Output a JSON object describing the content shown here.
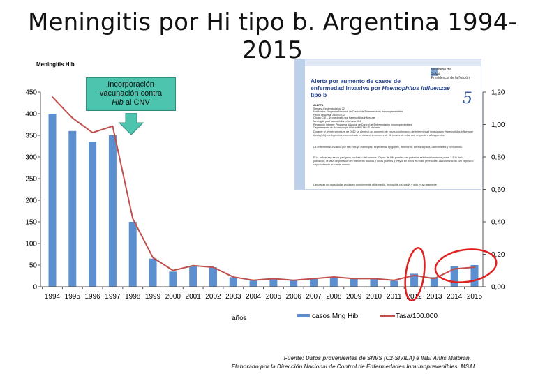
{
  "title": "Meningitis por Hi tipo b. Argentina 1994-2015",
  "chart_data": {
    "type": "bar",
    "categories": [
      "1994",
      "1995",
      "1996",
      "1997",
      "1998",
      "1999",
      "2000",
      "2001",
      "2002",
      "2003",
      "2004",
      "2005",
      "2006",
      "2007",
      "2008",
      "2009",
      "2010",
      "2011",
      "2012",
      "2013",
      "2014",
      "2015"
    ],
    "series": [
      {
        "name": "casos Mng Hib",
        "type": "bar",
        "axis": "left",
        "values": [
          400,
          360,
          335,
          350,
          150,
          65,
          35,
          47,
          45,
          22,
          15,
          18,
          15,
          20,
          22,
          20,
          20,
          14,
          30,
          22,
          47,
          50
        ],
        "color": "#5b8fd0"
      },
      {
        "name": "Tasa/100.000",
        "type": "line",
        "axis": "right",
        "values": [
          1.17,
          1.04,
          0.95,
          0.99,
          0.42,
          0.18,
          0.1,
          0.13,
          0.12,
          0.06,
          0.04,
          0.05,
          0.04,
          0.05,
          0.06,
          0.05,
          0.05,
          0.04,
          0.07,
          0.05,
          0.11,
          0.12
        ],
        "color": "#c0504d"
      }
    ],
    "ylabel": "Meningitis Hib",
    "xlabel": "años",
    "ylim": [
      0,
      450
    ],
    "y_ticks": [
      "450",
      "400",
      "350",
      "300",
      "250",
      "200",
      "150",
      "100",
      "50",
      "0"
    ],
    "y2lim": [
      0,
      1.2
    ],
    "y2_ticks": [
      "1,20",
      "1,00",
      "0,80",
      "0,60",
      "0,40",
      "0,20",
      "0,00"
    ],
    "grid": false,
    "legend": "bottom",
    "highlighted_categories": [
      "2012",
      "2014",
      "2015"
    ],
    "highlight_color": "#e02020"
  },
  "annotation": {
    "line1": "Incorporación",
    "line2": "vacunación contra",
    "line3_em": "Hib",
    "line3_rest": " al CNV",
    "color": "#4dc4ae"
  },
  "inset": {
    "title_line1": "Alerta por aumento de casos de",
    "title_line2": "enfermedad invasiva por ",
    "title_em": "Haemophilus influenzae",
    "title_line3": "tipo b",
    "number": "5",
    "logo_line1": "Ministerio de",
    "logo_line2": "Salud",
    "logo_line3": "Presidencia de la Nación",
    "meta": [
      "ALERTA",
      "Semana Epidemiológica:        22",
      "Notificador:          Programa Nacional de Control de Enfermedades Inmunoprevenibles",
      "Fecha de Alerta:        28/05/2012",
      "Código CIE – 10 meningitis por Haemophilus influenzae",
      "Meningitis por Haemophilus influenzae  J14",
      "Redacción Informe:   Programa Nacional de Control de Enfermedades Inmunoprevenibles",
      "Departamento de Bacteriología Clínica INEI ANLIS Malbrán"
    ],
    "para1": "Durante el primer semestre de 2012 se observó un aumento de casos confirmados de enfermedad invasiva por Haemophilus influenzae tipo b (Hib) en Argentina, concentrado en lactantes menores de 12 meses de edad con respecto a años previos.",
    "para2": "La enfermedad invasiva por Hib incluye meningitis, septicemia, epiglotitis, neumonía, artritis séptica, osteomielitis y pericarditis.",
    "para3": "El H. influenzae es un patógeno exclusivo del hombre. Cepas de Hib pueden ser portadas asintomáticamente por el 1-5 % de la población; la tasa de portación es menor en adultos y niños jóvenes y mayor en niños en edad preescolar. La colonización con cepas no capsuladas es aún más común.",
    "para4": "Las cepas no capsuladas producen comúnmente otitis media, bronquitis o sinusitis y solo muy raramente"
  },
  "source_line1": "Fuente: Datos provenientes de SNVS (C2-SIVILA) e INEI Anlis Malbrán.",
  "source_line2": "Elaborado por la Dirección Nacional de Control de Enfermedades Inmunoprevenibles. MSAL."
}
